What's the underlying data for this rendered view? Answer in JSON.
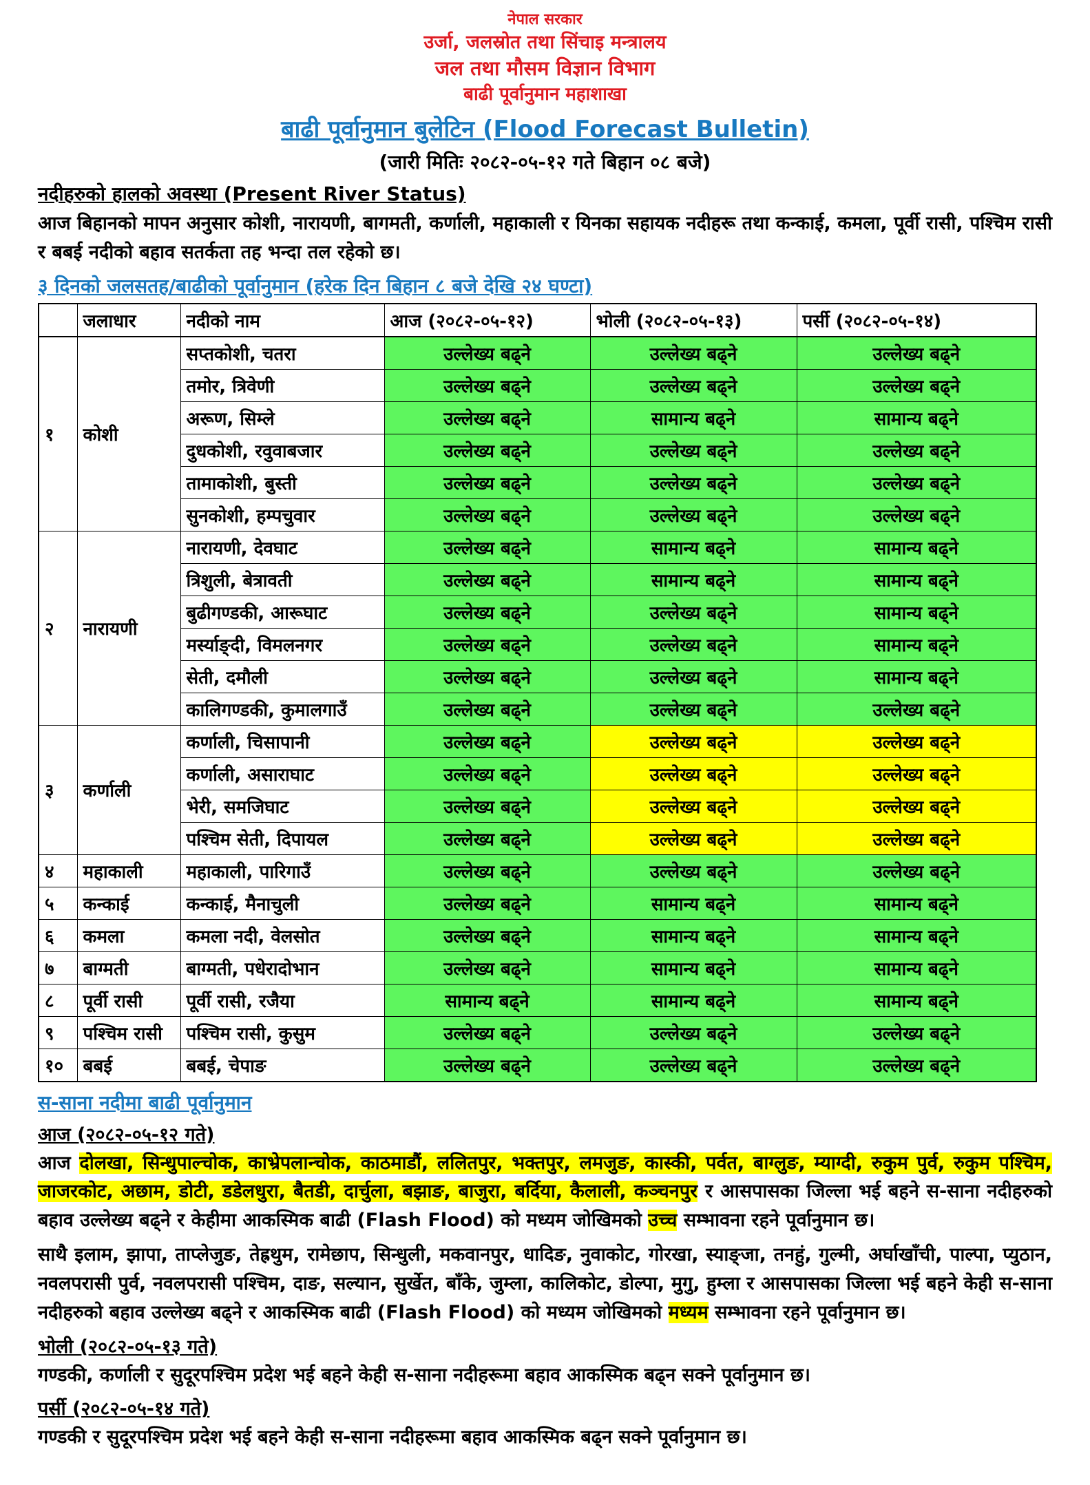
{
  "header": {
    "lines": [
      "नेपाल सरकार",
      "उर्जा, जलस्रोत तथा सिंचाइ मन्त्रालय",
      "जल तथा मौसम विज्ञान विभाग",
      "बाढी पूर्वानुमान महाशाखा"
    ],
    "title": "बाढी पूर्वानुमान बुलेटिन (Flood Forecast Bulletin)",
    "issue_date": "(जारी मितिः २०८२-०५-१२ गते बिहान ०८ बजे)"
  },
  "colors": {
    "red": "#e01b22",
    "blue": "#1879c0",
    "green_cell": "#5ef65e",
    "yellow_cell": "#ffff00"
  },
  "present_status": {
    "heading": "नदीहरुको हालको अवस्था (Present River Status)",
    "paragraph": "आज बिहानको मापन अनुसार कोशी, नारायणी, बागमती, कर्णाली, महाकाली र यिनका सहायक नदीहरू तथा कन्काई, कमला, पूर्वी रासी, पश्चिम रासी र बबई नदीको बहाव सतर्कता तह भन्दा तल रहेको छ।"
  },
  "forecast": {
    "heading": "३ दिनको जलसतह/बाढीको पूर्वानुमान  (हरेक दिन बिहान ८ बजे देखि २४ घण्टा)",
    "table": {
      "headers": [
        "",
        "जलाधार",
        "नदीको नाम",
        "आज (२०८२-०५-१२)",
        "भोली (२०८२-०५-१३)",
        "पर्सी (२०८२-०५-१४)"
      ],
      "rows": [
        {
          "sn": "१",
          "basin": "कोशी",
          "river": "सप्तकोशी, चतरा",
          "d1": "उल्लेख्य बढ्ने",
          "l1": "g",
          "d2": "उल्लेख्य बढ्ने",
          "l2": "g",
          "d3": "उल्लेख्य बढ्ने",
          "l3": "g"
        },
        {
          "river": "तमोर, त्रिवेणी",
          "d1": "उल्लेख्य बढ्ने",
          "l1": "g",
          "d2": "उल्लेख्य बढ्ने",
          "l2": "g",
          "d3": "उल्लेख्य बढ्ने",
          "l3": "g"
        },
        {
          "river": "अरूण, सिम्ले",
          "d1": "उल्लेख्य बढ्ने",
          "l1": "g",
          "d2": "सामान्य बढ्ने",
          "l2": "g",
          "d3": "सामान्य बढ्ने",
          "l3": "g"
        },
        {
          "river": "दुधकोशी, रवुवाबजार",
          "d1": "उल्लेख्य बढ्ने",
          "l1": "g",
          "d2": "उल्लेख्य बढ्ने",
          "l2": "g",
          "d3": "उल्लेख्य बढ्ने",
          "l3": "g"
        },
        {
          "river": "तामाकोशी, बुस्ती",
          "d1": "उल्लेख्य बढ्ने",
          "l1": "g",
          "d2": "उल्लेख्य बढ्ने",
          "l2": "g",
          "d3": "उल्लेख्य बढ्ने",
          "l3": "g"
        },
        {
          "river": "सुनकोशी, हम्पचुवार",
          "d1": "उल्लेख्य बढ्ने",
          "l1": "g",
          "d2": "उल्लेख्य बढ्ने",
          "l2": "g",
          "d3": "उल्लेख्य बढ्ने",
          "l3": "g"
        },
        {
          "sn": "२",
          "basin": "नारायणी",
          "river": "नारायणी, देवघाट",
          "d1": "उल्लेख्य बढ्ने",
          "l1": "g",
          "d2": "सामान्य बढ्ने",
          "l2": "g",
          "d3": "सामान्य बढ्ने",
          "l3": "g"
        },
        {
          "river": "त्रिशुली, बेत्रावती",
          "d1": "उल्लेख्य बढ्ने",
          "l1": "g",
          "d2": "सामान्य बढ्ने",
          "l2": "g",
          "d3": "सामान्य बढ्ने",
          "l3": "g"
        },
        {
          "river": "बुढीगण्डकी, आरूघाट",
          "d1": "उल्लेख्य बढ्ने",
          "l1": "g",
          "d2": "उल्लेख्य बढ्ने",
          "l2": "g",
          "d3": "सामान्य बढ्ने",
          "l3": "g"
        },
        {
          "river": "मर्स्याङ्दी, विमलनगर",
          "d1": "उल्लेख्य बढ्ने",
          "l1": "g",
          "d2": "उल्लेख्य बढ्ने",
          "l2": "g",
          "d3": "सामान्य बढ्ने",
          "l3": "g"
        },
        {
          "river": "सेती, दमौली",
          "d1": "उल्लेख्य बढ्ने",
          "l1": "g",
          "d2": "उल्लेख्य बढ्ने",
          "l2": "g",
          "d3": "सामान्य बढ्ने",
          "l3": "g"
        },
        {
          "river": "कालिगण्डकी, कुमालगाउँ",
          "d1": "उल्लेख्य बढ्ने",
          "l1": "g",
          "d2": "उल्लेख्य बढ्ने",
          "l2": "g",
          "d3": "उल्लेख्य बढ्ने",
          "l3": "g"
        },
        {
          "sn": "३",
          "basin": "कर्णाली",
          "river": "कर्णाली, चिसापानी",
          "d1": "उल्लेख्य बढ्ने",
          "l1": "g",
          "d2": "उल्लेख्य बढ्ने",
          "l2": "y",
          "d3": "उल्लेख्य बढ्ने",
          "l3": "y"
        },
        {
          "river": "कर्णाली, असाराघाट",
          "d1": "उल्लेख्य बढ्ने",
          "l1": "g",
          "d2": "उल्लेख्य बढ्ने",
          "l2": "y",
          "d3": "उल्लेख्य बढ्ने",
          "l3": "y"
        },
        {
          "river": "भेरी, समजिघाट",
          "d1": "उल्लेख्य बढ्ने",
          "l1": "g",
          "d2": "उल्लेख्य बढ्ने",
          "l2": "y",
          "d3": "उल्लेख्य बढ्ने",
          "l3": "y"
        },
        {
          "river": "पश्चिम सेती, दिपायल",
          "d1": "उल्लेख्य बढ्ने",
          "l1": "g",
          "d2": "उल्लेख्य बढ्ने",
          "l2": "y",
          "d3": "उल्लेख्य बढ्ने",
          "l3": "y"
        },
        {
          "sn": "४",
          "basin": "महाकाली",
          "river": "महाकाली, पारिगाउँ",
          "d1": "उल्लेख्य बढ्ने",
          "l1": "g",
          "d2": "उल्लेख्य बढ्ने",
          "l2": "g",
          "d3": "उल्लेख्य बढ्ने",
          "l3": "g"
        },
        {
          "sn": "५",
          "basin": "कन्काई",
          "river": "कन्काई, मैनाचुली",
          "d1": "उल्लेख्य बढ्ने",
          "l1": "g",
          "d2": "सामान्य बढ्ने",
          "l2": "g",
          "d3": "सामान्य बढ्ने",
          "l3": "g"
        },
        {
          "sn": "६",
          "basin": "कमला",
          "river": "कमला नदी, वेलसोत",
          "d1": "उल्लेख्य बढ्ने",
          "l1": "g",
          "d2": "सामान्य बढ्ने",
          "l2": "g",
          "d3": "सामान्य बढ्ने",
          "l3": "g"
        },
        {
          "sn": "७",
          "basin": "बाग्मती",
          "river": "बाग्मती, पधेरादोभान",
          "d1": "उल्लेख्य बढ्ने",
          "l1": "g",
          "d2": "सामान्य बढ्ने",
          "l2": "g",
          "d3": "सामान्य बढ्ने",
          "l3": "g"
        },
        {
          "sn": "८",
          "basin": "पूर्वी रासी",
          "river": "पूर्वी रासी, रजैया",
          "d1": "सामान्य बढ्ने",
          "l1": "g",
          "d2": "सामान्य बढ्ने",
          "l2": "g",
          "d3": "सामान्य बढ्ने",
          "l3": "g"
        },
        {
          "sn": "९",
          "basin": "पश्चिम रासी",
          "river": "पश्चिम रासी, कुसुम",
          "d1": "उल्लेख्य बढ्ने",
          "l1": "g",
          "d2": "उल्लेख्य बढ्ने",
          "l2": "g",
          "d3": "उल्लेख्य बढ्ने",
          "l3": "g"
        },
        {
          "sn": "१०",
          "basin": "बबई",
          "river": "बबई, चेपाङ",
          "d1": "उल्लेख्य बढ्ने",
          "l1": "g",
          "d2": "उल्लेख्य बढ्ने",
          "l2": "g",
          "d3": "उल्लेख्य बढ्ने",
          "l3": "g"
        }
      ]
    }
  },
  "small_rivers": {
    "heading": "स-साना नदीमा बाढी पूर्वानुमान",
    "today": {
      "heading": "आज (२०८२-०५-१२ गते)",
      "p1_prefix": "आज ",
      "p1_highlight_districts": "दोलखा, सिन्धुपाल्चोक, काभ्रेपलान्चोक, काठमाडौं, ललितपुर, भक्तपुर, लमजुङ, कास्की, पर्वत, बाग्लुङ, म्याग्दी, रुकुम पुर्व, रुकुम पश्चिम, जाजरकोट, अछाम, डोटी, डडेलधुरा, बैतडी, दार्चुला, बझाङ, बाजुरा, बर्दिया, कैलाली, कञ्चनपुर",
      "p1_mid": " र आसपासका जिल्ला भई बहने स-साना नदीहरुको बहाव उल्लेख्य बढ्ने र  केहीमा आकस्मिक बाढी (Flash Flood) को मध्यम जोखिमको ",
      "p1_highlight_level": "उच्च",
      "p1_suffix": " सम्भावना रहने पूर्वानुमान छ।",
      "p2_prefix": "साथै इलाम, झापा, ताप्लेजुङ, तेह्रथुम, रामेछाप, सिन्धुली, मकवानपुर, धादिङ, नुवाकोट, गोरखा, स्याङ्जा, तनहुं, गुल्मी, अर्घाखाँची, पाल्पा, प्युठान, नवलपरासी पुर्व, नवलपरासी पश्चिम, दाङ, सल्यान, सुर्खेत, बाँके, जुम्ला, कालिकोट, डोल्पा, मुगु, हुम्ला र आसपासका जिल्ला भई बहने केही स-साना नदीहरुको बहाव उल्लेख्य बढ्ने र आकस्मिक बाढी (Flash Flood) को मध्यम जोखिमको ",
      "p2_highlight_level": "मध्यम",
      "p2_suffix": " सम्भावना रहने पूर्वानुमान छ।"
    },
    "tomorrow": {
      "heading": "भोली (२०८२-०५-१३ गते)",
      "paragraph": "गण्डकी, कर्णाली र सुदूरपश्चिम प्रदेश भई बहने केही स-साना नदीहरूमा बहाव आकस्मिक बढ्न सक्ने पूर्वानुमान छ।"
    },
    "day_after": {
      "heading": "पर्सी (२०८२-०५-१४ गते)",
      "paragraph": "गण्डकी र सुदूरपश्चिम प्रदेश भई बहने केही स-साना नदीहरूमा बहाव आकस्मिक बढ्न सक्ने पूर्वानुमान छ।"
    }
  }
}
